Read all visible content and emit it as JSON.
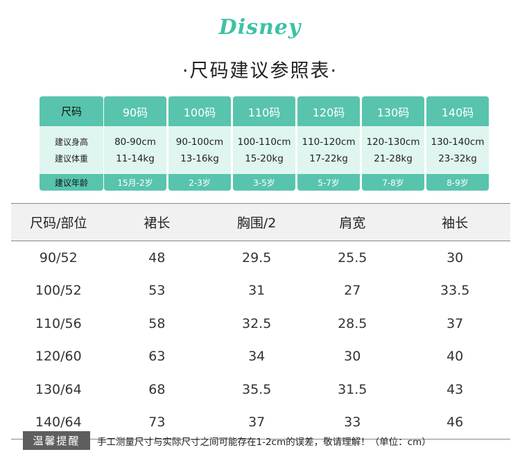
{
  "brand": {
    "logo_text": "Disney"
  },
  "title": "·尺码建议参照表·",
  "size_guide": {
    "row_labels": {
      "size": "尺码",
      "height": "建议身高",
      "weight": "建议体重",
      "age": "建议年龄"
    },
    "columns": [
      {
        "size": "90码",
        "height": "80-90cm",
        "weight": "11-14kg",
        "age": "15月-2岁"
      },
      {
        "size": "100码",
        "height": "90-100cm",
        "weight": "13-16kg",
        "age": "2-3岁"
      },
      {
        "size": "110码",
        "height": "100-110cm",
        "weight": "15-20kg",
        "age": "3-5岁"
      },
      {
        "size": "120码",
        "height": "110-120cm",
        "weight": "17-22kg",
        "age": "5-7岁"
      },
      {
        "size": "130码",
        "height": "120-130cm",
        "weight": "21-28kg",
        "age": "7-8岁"
      },
      {
        "size": "140码",
        "height": "130-140cm",
        "weight": "23-32kg",
        "age": "8-9岁"
      }
    ]
  },
  "measurements": {
    "headers": [
      "尺码/部位",
      "裙长",
      "胸围/2",
      "肩宽",
      "袖长"
    ],
    "rows": [
      [
        "90/52",
        "48",
        "29.5",
        "25.5",
        "30"
      ],
      [
        "100/52",
        "53",
        "31",
        "27",
        "33.5"
      ],
      [
        "110/56",
        "58",
        "32.5",
        "28.5",
        "37"
      ],
      [
        "120/60",
        "63",
        "34",
        "30",
        "40"
      ],
      [
        "130/64",
        "68",
        "35.5",
        "31.5",
        "43"
      ],
      [
        "140/64",
        "73",
        "37",
        "33",
        "46"
      ]
    ]
  },
  "note": {
    "label": "温馨提醒",
    "text": "手工测量尺寸与实际尺寸之间可能存在1-2cm的误差，敬请理解！（单位：cm）"
  },
  "colors": {
    "accent": "#58c4ad",
    "light_accent": "#dff5ef",
    "logo": "#3cc2a7",
    "note_bg": "#5e5e5e"
  }
}
